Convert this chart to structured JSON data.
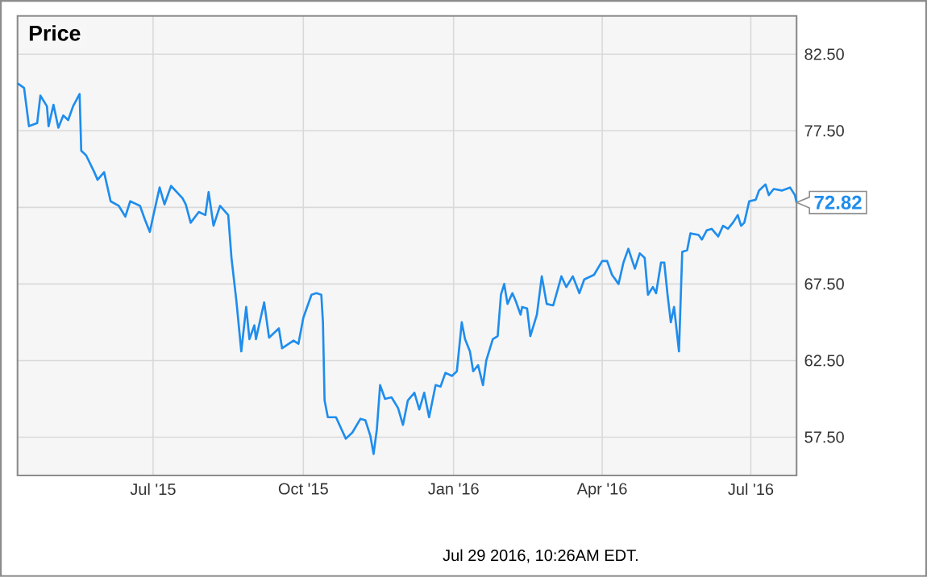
{
  "chart_data": {
    "type": "line",
    "title": "Price",
    "x": [
      "2015-04-09",
      "2015-04-13",
      "2015-04-16",
      "2015-04-21",
      "2015-04-23",
      "2015-04-27",
      "2015-04-28",
      "2015-05-01",
      "2015-05-04",
      "2015-05-07",
      "2015-05-10",
      "2015-05-13",
      "2015-05-17",
      "2015-05-18",
      "2015-05-21",
      "2015-05-26",
      "2015-05-28",
      "2015-06-01",
      "2015-06-05",
      "2015-06-10",
      "2015-06-14",
      "2015-06-17",
      "2015-06-23",
      "2015-06-26",
      "2015-06-29",
      "2015-07-01",
      "2015-07-05",
      "2015-07-08",
      "2015-07-12",
      "2015-07-19",
      "2015-07-21",
      "2015-07-24",
      "2015-07-29",
      "2015-08-02",
      "2015-08-04",
      "2015-08-07",
      "2015-08-11",
      "2015-08-16",
      "2015-08-18",
      "2015-08-21",
      "2015-08-24",
      "2015-08-27",
      "2015-08-29",
      "2015-09-01",
      "2015-09-02",
      "2015-09-07",
      "2015-09-10",
      "2015-09-16",
      "2015-09-18",
      "2015-09-25",
      "2015-09-28",
      "2015-10-01",
      "2015-10-06",
      "2015-10-09",
      "2015-10-12",
      "2015-10-13",
      "2015-10-14",
      "2015-10-16",
      "2015-10-21",
      "2015-10-24",
      "2015-10-27",
      "2015-10-31",
      "2015-11-05",
      "2015-11-08",
      "2015-11-11",
      "2015-11-13",
      "2015-11-15",
      "2015-11-17",
      "2015-11-20",
      "2015-11-24",
      "2015-11-28",
      "2015-12-01",
      "2015-12-04",
      "2015-12-08",
      "2015-12-11",
      "2015-12-14",
      "2015-12-17",
      "2015-12-21",
      "2015-12-24",
      "2015-12-27",
      "2015-12-31",
      "2016-01-03",
      "2016-01-06",
      "2016-01-08",
      "2016-01-11",
      "2016-01-13",
      "2016-01-16",
      "2016-01-19",
      "2016-01-21",
      "2016-01-25",
      "2016-01-28",
      "2016-01-30",
      "2016-02-01",
      "2016-02-03",
      "2016-02-06",
      "2016-02-08",
      "2016-02-11",
      "2016-02-12",
      "2016-02-15",
      "2016-02-17",
      "2016-02-21",
      "2016-02-24",
      "2016-02-27",
      "2016-03-02",
      "2016-03-07",
      "2016-03-10",
      "2016-03-14",
      "2016-03-18",
      "2016-03-21",
      "2016-03-27",
      "2016-04-01",
      "2016-04-04",
      "2016-04-07",
      "2016-04-11",
      "2016-04-14",
      "2016-04-17",
      "2016-04-21",
      "2016-04-24",
      "2016-04-27",
      "2016-04-29",
      "2016-05-02",
      "2016-05-04",
      "2016-05-07",
      "2016-05-09",
      "2016-05-11",
      "2016-05-13",
      "2016-05-15",
      "2016-05-18",
      "2016-05-20",
      "2016-05-23",
      "2016-05-25",
      "2016-05-30",
      "2016-06-01",
      "2016-06-04",
      "2016-06-07",
      "2016-06-11",
      "2016-06-14",
      "2016-06-17",
      "2016-06-20",
      "2016-06-23",
      "2016-06-25",
      "2016-06-27",
      "2016-06-30",
      "2016-07-04",
      "2016-07-06",
      "2016-07-10",
      "2016-07-12",
      "2016-07-15",
      "2016-07-20",
      "2016-07-25",
      "2016-07-28",
      "2016-07-29"
    ],
    "series": [
      {
        "color": "#1f8ded",
        "values": [
          80.6,
          80.3,
          77.8,
          78.0,
          79.8,
          79.1,
          77.8,
          79.2,
          77.7,
          78.5,
          78.2,
          79.1,
          79.9,
          76.2,
          75.9,
          74.8,
          74.3,
          74.8,
          72.9,
          72.6,
          71.9,
          72.9,
          72.6,
          71.7,
          70.9,
          71.9,
          73.8,
          72.7,
          73.9,
          73.1,
          72.7,
          71.5,
          72.2,
          72.0,
          73.5,
          71.3,
          72.6,
          72.0,
          69.2,
          66.4,
          63.1,
          66.0,
          63.9,
          64.8,
          63.9,
          66.3,
          64.0,
          64.6,
          63.3,
          63.8,
          63.6,
          65.3,
          66.8,
          66.9,
          66.8,
          65.0,
          59.9,
          58.8,
          58.8,
          58.1,
          57.4,
          57.8,
          58.7,
          58.6,
          57.6,
          56.4,
          58.0,
          60.9,
          60.0,
          60.1,
          59.4,
          58.3,
          59.9,
          60.4,
          59.3,
          60.4,
          58.8,
          60.9,
          60.8,
          61.7,
          61.5,
          61.8,
          65.0,
          63.9,
          63.1,
          61.8,
          62.2,
          60.9,
          62.5,
          63.9,
          64.1,
          66.8,
          67.5,
          66.2,
          66.9,
          66.4,
          65.5,
          66.0,
          65.9,
          64.1,
          65.5,
          68.0,
          66.2,
          66.1,
          68.0,
          67.3,
          68.0,
          66.9,
          67.8,
          68.1,
          69.0,
          69.0,
          68.1,
          67.5,
          68.9,
          69.8,
          68.5,
          69.5,
          69.2,
          66.8,
          67.3,
          66.9,
          68.9,
          68.9,
          66.8,
          65.0,
          66.0,
          63.1,
          69.6,
          69.7,
          70.8,
          70.7,
          70.4,
          71.0,
          71.1,
          70.6,
          71.3,
          71.1,
          71.5,
          72.0,
          71.3,
          71.5,
          72.9,
          73.0,
          73.6,
          74.0,
          73.3,
          73.7,
          73.6,
          73.8,
          73.3,
          72.82
        ]
      }
    ],
    "xlim": [
      "2015-04-09",
      "2016-07-29"
    ],
    "xticks": [
      {
        "value": "2015-07-01",
        "label": "Jul '15"
      },
      {
        "value": "2015-10-01",
        "label": "Oct '15"
      },
      {
        "value": "2016-01-01",
        "label": "Jan '16"
      },
      {
        "value": "2016-04-01",
        "label": "Apr '16"
      },
      {
        "value": "2016-07-01",
        "label": "Jul '16"
      }
    ],
    "ylim": [
      55,
      85
    ],
    "yticks": [
      {
        "value": 57.5,
        "label": "57.50"
      },
      {
        "value": 62.5,
        "label": "62.50"
      },
      {
        "value": 67.5,
        "label": "67.50"
      },
      {
        "value": 72.5,
        "label": null
      },
      {
        "value": 77.5,
        "label": "77.50"
      },
      {
        "value": 82.5,
        "label": "82.50"
      }
    ],
    "grid": true,
    "annotations": [
      {
        "text": "72.82",
        "x": "2016-07-29",
        "y": 72.82
      },
      "Jul 29 2016, 10:26AM EDT."
    ]
  }
}
